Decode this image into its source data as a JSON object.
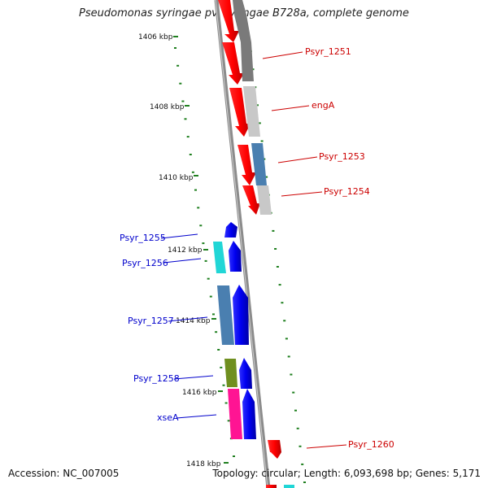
{
  "title": "Pseudomonas syringae pv. syringae B728a, complete genome",
  "footer": {
    "accession": "Accession: NC_007005",
    "summary": "Topology: circular; Length: 6,093,698 bp; Genes: 5,171"
  },
  "ruler_labels": [
    "1406 kbp",
    "1408 kbp",
    "1410 kbp",
    "1412 kbp",
    "1414 kbp",
    "1416 kbp",
    "1418 kbp"
  ],
  "gene_labels": {
    "psyr_1251": "Psyr_1251",
    "engA": "engA",
    "psyr_1253": "Psyr_1253",
    "psyr_1254": "Psyr_1254",
    "psyr_1255": "Psyr_1255",
    "psyr_1256": "Psyr_1256",
    "psyr_1257": "Psyr_1257",
    "psyr_1258": "Psyr_1258",
    "xseA": "xseA",
    "psyr_1260": "Psyr_1260"
  },
  "colors": {
    "forward_strand_gene": "#ff0000",
    "reverse_strand_gene": "#0000ff",
    "cog_grey": "#7a7a7a",
    "cog_light_grey": "#c8c8c8",
    "cog_steel_blue": "#4a7fb0",
    "cog_cyan": "#21d6d6",
    "cog_olive": "#6f8f1f",
    "cog_magenta": "#ff1493",
    "backbone": "#8c8c8c",
    "gc_plot_dots": "#1f7f1f",
    "label_red": "#cc0000",
    "label_blue": "#0000cc"
  }
}
